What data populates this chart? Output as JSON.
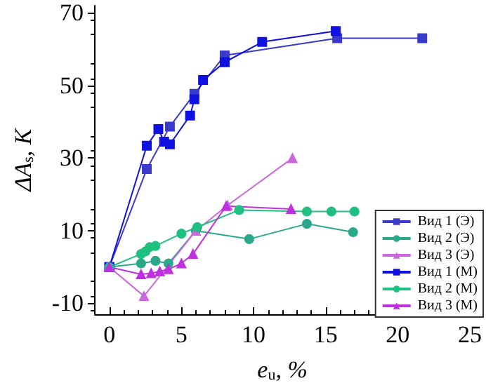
{
  "chart_data": {
    "type": "line",
    "xlabel": "e$_{u}$, %",
    "ylabel": "ΔA$_{s}$, K",
    "xlim": [
      -1,
      25
    ],
    "xticks": [
      0,
      5,
      10,
      15,
      20,
      25
    ],
    "ylim": [
      -13,
      72
    ],
    "yticks": [
      -10,
      10,
      30,
      50,
      70
    ],
    "grid": false,
    "legend": "bottom right",
    "line_style": "solid",
    "series": [
      {
        "name": "Вид 1 (Э)",
        "color": "#3a3acc",
        "marker": "square",
        "x": [
          0,
          2.6,
          4.2,
          5.9,
          8.0,
          15.8,
          21.7
        ],
        "values": [
          0,
          27,
          38.7,
          47.7,
          58.3,
          63,
          63
        ]
      },
      {
        "name": "Вид 2 (Э)",
        "color": "#2aa88a",
        "marker": "circle",
        "x": [
          0,
          2.2,
          3.2,
          4.1,
          6.0,
          9.7,
          13.7,
          16.9
        ],
        "values": [
          0,
          1,
          1.7,
          1,
          10,
          7.7,
          11.9,
          9.6
        ]
      },
      {
        "name": "Вид 3 (Э)",
        "color": "#cc66dd",
        "marker": "triangle",
        "x": [
          0,
          2.4,
          6.0,
          8.2,
          12.7
        ],
        "values": [
          0,
          -8,
          10,
          17,
          30
        ]
      },
      {
        "name": "Вид 1 (М)",
        "color": "#1010e0",
        "marker": "square",
        "x": [
          0,
          2.6,
          3.4,
          3.8,
          4.2,
          5.6,
          5.9,
          6.5,
          8.0,
          10.6,
          15.7
        ],
        "values": [
          0,
          33.4,
          38,
          34.5,
          33.8,
          41.7,
          46.2,
          51.5,
          56.4,
          62,
          65
        ]
      },
      {
        "name": "Вид 2 (М)",
        "color": "#20c080",
        "marker": "circle",
        "x": [
          0,
          2.2,
          2.5,
          2.8,
          3.2,
          5.0,
          6.1,
          9.0,
          13.7,
          15.4,
          17.0
        ],
        "values": [
          0,
          3.6,
          4.3,
          5.5,
          5.8,
          9.2,
          11,
          15.7,
          15.3,
          15.3,
          15.3
        ]
      },
      {
        "name": "Вид 3 (М)",
        "color": "#c030e0",
        "marker": "triangle",
        "x": [
          0,
          2.2,
          2.9,
          3.5,
          4.1,
          5.0,
          5.8,
          8.1,
          12.6
        ],
        "values": [
          0,
          -2,
          -1.7,
          -1.2,
          -0.6,
          1,
          3.6,
          16.8,
          16
        ]
      }
    ]
  }
}
